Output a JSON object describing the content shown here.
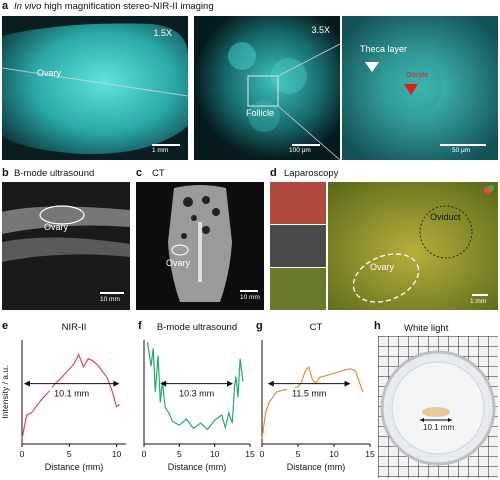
{
  "panel_a": {
    "letter": "a",
    "title_italic": "In vivo",
    "title_rest": " high magnification stereo-NIR-II imaging",
    "img1": {
      "zoom": "1.5X",
      "label": "Ovary",
      "scale": "1 mm"
    },
    "img2": {
      "zoom": "3.5X",
      "label": "Follicle",
      "scale": "100 μm"
    },
    "img3": {
      "label1": "Theca layer",
      "label2": "Oocyte",
      "scale": "50 μm"
    }
  },
  "panel_b": {
    "letter": "b",
    "title": "B-mode ultrasound",
    "label": "Ovary",
    "scale": "10 mm"
  },
  "panel_c": {
    "letter": "c",
    "title": "CT",
    "label": "Ovary",
    "scale": "10 mm"
  },
  "panel_d": {
    "letter": "d",
    "title": "Laparoscopy",
    "label1": "Oviduct",
    "label2": "Ovary",
    "scale": "1 mm"
  },
  "panel_h": {
    "letter": "h",
    "title": "White light",
    "measure": "10.1 mm"
  },
  "ylabel": "Intensity / a.u.",
  "colors": {
    "nir": "#e8444f",
    "us": "#27a86b",
    "ct": "#f08a2a",
    "cyan": "#3fd6d0"
  },
  "chart_data": [
    {
      "type": "line",
      "letter": "e",
      "title": "NIR-II",
      "xlabel": "Distance (mm)",
      "xlim": [
        0,
        11
      ],
      "xticks": [
        0,
        5,
        10
      ],
      "measure": "10.1 mm",
      "x": [
        0,
        0.5,
        1,
        1.5,
        2,
        2.5,
        3,
        3.5,
        4,
        4.5,
        5,
        5.5,
        6,
        6.5,
        7,
        7.5,
        8,
        8.5,
        9,
        9.5,
        10,
        10.3
      ],
      "y": [
        0.05,
        0.28,
        0.3,
        0.36,
        0.42,
        0.47,
        0.52,
        0.58,
        0.62,
        0.67,
        0.72,
        0.77,
        0.86,
        0.74,
        0.82,
        0.8,
        0.76,
        0.7,
        0.64,
        0.52,
        0.36,
        0.38
      ]
    },
    {
      "type": "line",
      "letter": "f",
      "title": "B-mode ultrasound",
      "xlabel": "Distance (mm)",
      "xlim": [
        0,
        15
      ],
      "xticks": [
        0,
        5,
        10,
        15
      ],
      "measure": "10.3 mm",
      "x": [
        0.5,
        1,
        1.3,
        1.6,
        2,
        2.3,
        2.6,
        3,
        3.5,
        4,
        5,
        6,
        7,
        8,
        9,
        10,
        11,
        11.5,
        12,
        12.5,
        12.8,
        13,
        13.3,
        13.6,
        14
      ],
      "y": [
        0.98,
        0.75,
        0.92,
        0.5,
        0.85,
        0.4,
        0.6,
        0.35,
        0.3,
        0.22,
        0.18,
        0.24,
        0.15,
        0.2,
        0.14,
        0.23,
        0.28,
        0.16,
        0.3,
        0.2,
        0.55,
        0.65,
        0.45,
        0.82,
        0.6
      ]
    },
    {
      "type": "line",
      "letter": "g",
      "title": "CT",
      "xlabel": "Distance (mm)",
      "xlim": [
        0,
        15
      ],
      "xticks": [
        0,
        5,
        10,
        15
      ],
      "measure": "11.5 mm",
      "x": [
        0,
        0.5,
        1,
        1.5,
        2,
        3,
        4,
        5,
        5.5,
        6,
        6.5,
        7,
        7.5,
        8,
        9,
        10,
        11,
        12,
        12.5,
        13,
        13.5,
        14
      ],
      "y": [
        0.05,
        0.3,
        0.4,
        0.45,
        0.5,
        0.52,
        0.53,
        0.55,
        0.6,
        0.7,
        0.74,
        0.62,
        0.58,
        0.64,
        0.66,
        0.68,
        0.7,
        0.72,
        0.72,
        0.7,
        0.6,
        0.5
      ]
    }
  ]
}
